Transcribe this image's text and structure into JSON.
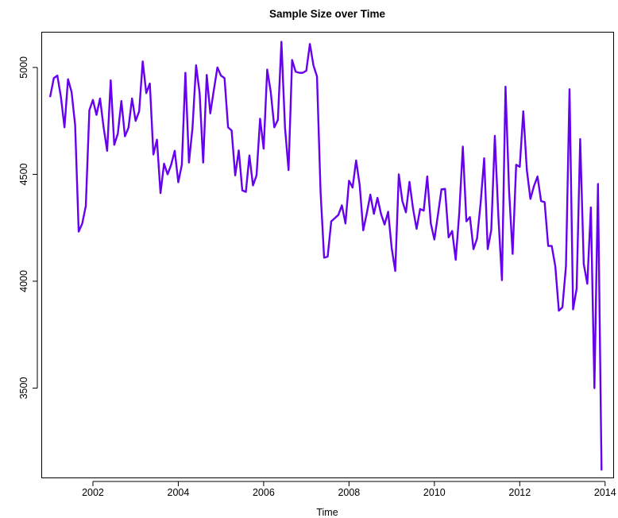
{
  "chart_data": {
    "type": "line",
    "title": "Sample Size over Time",
    "xlabel": "Time",
    "ylabel": "",
    "xlim": [
      2000.8,
      2014.2
    ],
    "ylim": [
      3080,
      5165
    ],
    "x_ticks": [
      2002,
      2004,
      2006,
      2008,
      2010,
      2012,
      2014
    ],
    "y_ticks": [
      3500,
      4000,
      4500,
      5000
    ],
    "grid": false,
    "legend": "none",
    "series": [
      {
        "color": "#6600ee",
        "x_start": 2001.0,
        "x_step": 0.0833333333,
        "values": [
          4865,
          4950,
          4962,
          4862,
          4720,
          4945,
          4885,
          4730,
          4232,
          4270,
          4352,
          4800,
          4848,
          4778,
          4855,
          4720,
          4610,
          4940,
          4638,
          4690,
          4843,
          4678,
          4718,
          4855,
          4750,
          4795,
          5028,
          4880,
          4925,
          4593,
          4662,
          4412,
          4550,
          4500,
          4545,
          4610,
          4463,
          4545,
          4975,
          4555,
          4718,
          5010,
          4880,
          4555,
          4965,
          4785,
          4895,
          5000,
          4962,
          4950,
          4720,
          4705,
          4495,
          4612,
          4425,
          4418,
          4588,
          4448,
          4495,
          4760,
          4620,
          4990,
          4885,
          4720,
          4755,
          5120,
          4720,
          4520,
          5035,
          4980,
          4975,
          4975,
          4985,
          5110,
          5010,
          4958,
          4420,
          4110,
          4115,
          4280,
          4295,
          4310,
          4355,
          4270,
          4470,
          4438,
          4565,
          4450,
          4238,
          4318,
          4405,
          4315,
          4390,
          4315,
          4265,
          4325,
          4155,
          4048,
          4500,
          4375,
          4322,
          4465,
          4340,
          4245,
          4338,
          4330,
          4490,
          4270,
          4195,
          4310,
          4430,
          4432,
          4205,
          4235,
          4100,
          4320,
          4630,
          4280,
          4300,
          4150,
          4200,
          4365,
          4575,
          4150,
          4240,
          4680,
          4300,
          4005,
          4910,
          4425,
          4128,
          4545,
          4535,
          4795,
          4520,
          4385,
          4445,
          4490,
          4375,
          4370,
          4165,
          4165,
          4070,
          3862,
          3878,
          4070,
          4898,
          3868,
          3965,
          4665,
          4080,
          3988,
          4345,
          3500,
          4455,
          3118
        ]
      }
    ]
  }
}
